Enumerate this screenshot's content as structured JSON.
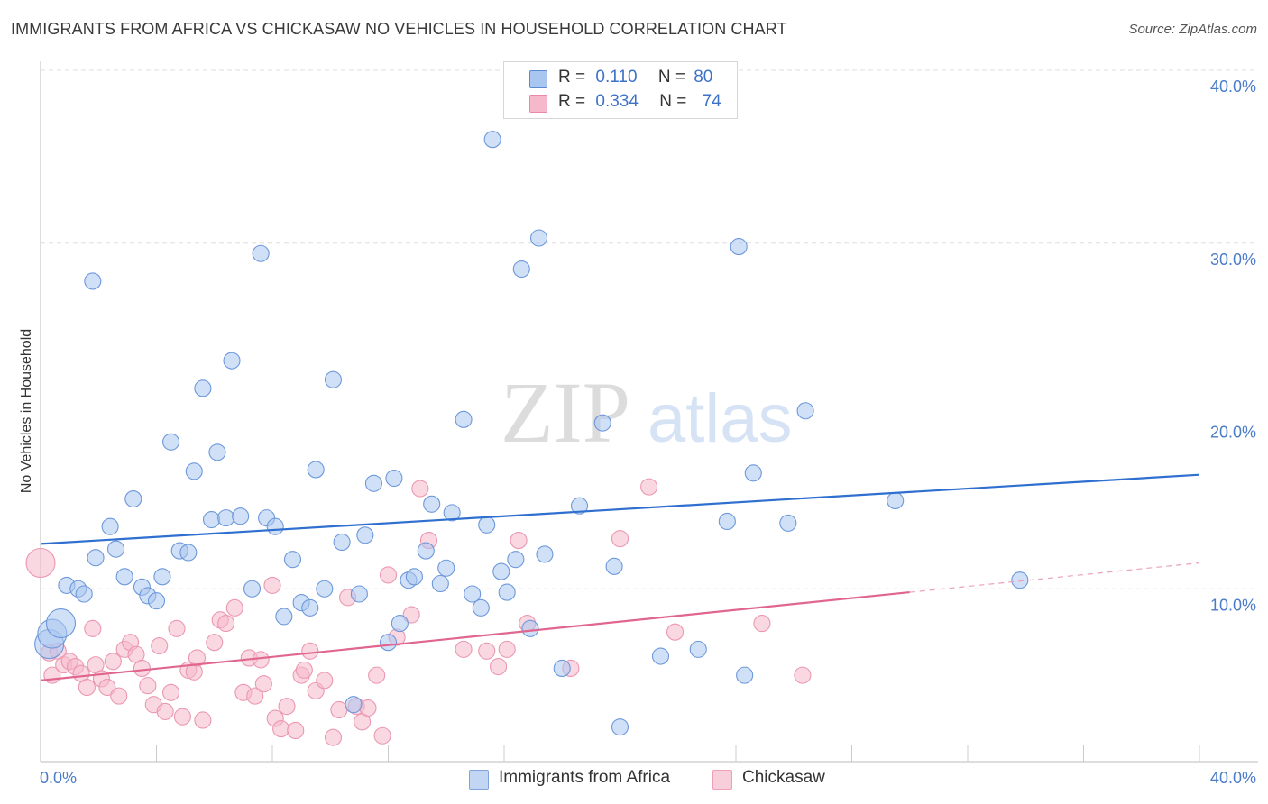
{
  "title": "IMMIGRANTS FROM AFRICA VS CHICKASAW NO VEHICLES IN HOUSEHOLD CORRELATION CHART",
  "source": "Source: ZipAtlas.com",
  "watermark": {
    "zip": "ZIP",
    "atlas": "atlas"
  },
  "legend": {
    "rows": [
      {
        "r_label": "R =",
        "r_value": "0.110",
        "n_label": "N =",
        "n_value": "80",
        "color": "#a9c6f0"
      },
      {
        "r_label": "R =",
        "r_value": "0.334",
        "n_label": "N =",
        "n_value": "74",
        "color": "#f6b8cb"
      }
    ]
  },
  "bottom_legend": [
    {
      "label": "Immigrants from Africa",
      "color": "#a9c6f0"
    },
    {
      "label": "Chickasaw",
      "color": "#f6b8cb"
    }
  ],
  "chart_data": {
    "type": "scatter",
    "title": "IMMIGRANTS FROM AFRICA VS CHICKASAW NO VEHICLES IN HOUSEHOLD CORRELATION CHART",
    "xlabel": "",
    "ylabel": "No Vehicles in Household",
    "xlim": [
      0,
      40
    ],
    "ylim": [
      0,
      40
    ],
    "x_ticks": [
      "0.0%",
      "40.0%"
    ],
    "y_ticks": [
      "10.0%",
      "20.0%",
      "30.0%",
      "40.0%"
    ],
    "y_tick_values": [
      10,
      20,
      30,
      40
    ],
    "grid": true,
    "legend_position": "top-center",
    "series": [
      {
        "name": "Immigrants from Africa",
        "color": "#4a7cc9",
        "fill": "#a9c6f0",
        "r": "0.110",
        "n": "80",
        "trend": {
          "x": [
            0,
            40
          ],
          "y": [
            12.6,
            16.6
          ]
        },
        "points": [
          [
            0.3,
            6.8
          ],
          [
            0.4,
            7.4
          ],
          [
            0.7,
            8.0
          ],
          [
            0.9,
            10.2
          ],
          [
            1.3,
            10.0
          ],
          [
            1.5,
            9.7
          ],
          [
            1.9,
            11.8
          ],
          [
            1.8,
            27.8
          ],
          [
            2.4,
            13.6
          ],
          [
            2.6,
            12.3
          ],
          [
            2.9,
            10.7
          ],
          [
            3.2,
            15.2
          ],
          [
            3.5,
            10.1
          ],
          [
            3.7,
            9.6
          ],
          [
            4.0,
            9.3
          ],
          [
            4.2,
            10.7
          ],
          [
            4.5,
            18.5
          ],
          [
            4.8,
            12.2
          ],
          [
            5.1,
            12.1
          ],
          [
            5.3,
            16.8
          ],
          [
            5.6,
            21.6
          ],
          [
            5.9,
            14.0
          ],
          [
            6.1,
            17.9
          ],
          [
            6.4,
            14.1
          ],
          [
            6.6,
            23.2
          ],
          [
            6.9,
            14.2
          ],
          [
            7.3,
            10.0
          ],
          [
            7.6,
            29.4
          ],
          [
            7.8,
            14.1
          ],
          [
            8.1,
            13.6
          ],
          [
            8.4,
            8.4
          ],
          [
            8.7,
            11.7
          ],
          [
            9.0,
            9.2
          ],
          [
            9.3,
            8.9
          ],
          [
            9.5,
            16.9
          ],
          [
            9.8,
            10.0
          ],
          [
            10.1,
            22.1
          ],
          [
            10.4,
            12.7
          ],
          [
            10.8,
            3.3
          ],
          [
            11.0,
            9.7
          ],
          [
            11.2,
            13.1
          ],
          [
            11.5,
            16.1
          ],
          [
            12.0,
            6.9
          ],
          [
            12.2,
            16.4
          ],
          [
            12.4,
            8.0
          ],
          [
            12.7,
            10.5
          ],
          [
            12.9,
            10.7
          ],
          [
            13.3,
            12.2
          ],
          [
            13.5,
            14.9
          ],
          [
            13.8,
            10.3
          ],
          [
            14.0,
            11.2
          ],
          [
            14.2,
            14.4
          ],
          [
            14.6,
            19.8
          ],
          [
            14.9,
            9.7
          ],
          [
            15.2,
            8.9
          ],
          [
            15.4,
            13.7
          ],
          [
            15.6,
            36.0
          ],
          [
            15.9,
            11.0
          ],
          [
            16.1,
            9.8
          ],
          [
            16.4,
            11.7
          ],
          [
            16.6,
            28.5
          ],
          [
            16.9,
            7.7
          ],
          [
            17.2,
            30.3
          ],
          [
            17.4,
            12.0
          ],
          [
            18.0,
            5.4
          ],
          [
            18.6,
            14.8
          ],
          [
            19.4,
            19.6
          ],
          [
            19.8,
            11.3
          ],
          [
            20.0,
            2.0
          ],
          [
            20.3,
            39.2
          ],
          [
            21.4,
            6.1
          ],
          [
            22.7,
            6.5
          ],
          [
            23.7,
            13.9
          ],
          [
            24.1,
            29.8
          ],
          [
            24.3,
            5.0
          ],
          [
            24.6,
            16.7
          ],
          [
            25.8,
            13.8
          ],
          [
            26.4,
            20.3
          ],
          [
            29.5,
            15.1
          ],
          [
            33.8,
            10.5
          ]
        ],
        "large_points": [
          [
            0.3,
            6.8
          ],
          [
            0.4,
            7.4
          ],
          [
            0.7,
            8.0
          ]
        ]
      },
      {
        "name": "Chickasaw",
        "color": "#e36e96",
        "fill": "#f6b8cb",
        "r": "0.334",
        "n": "74",
        "trend": {
          "x": [
            0,
            30
          ],
          "y": [
            4.7,
            9.8
          ]
        },
        "trend_dashed": {
          "x": [
            30,
            40
          ],
          "y": [
            9.8,
            11.5
          ]
        },
        "points": [
          [
            0.0,
            11.5
          ],
          [
            0.3,
            6.3
          ],
          [
            0.4,
            5.0
          ],
          [
            0.6,
            6.4
          ],
          [
            0.8,
            5.6
          ],
          [
            1.0,
            5.8
          ],
          [
            1.2,
            5.5
          ],
          [
            1.4,
            5.1
          ],
          [
            1.6,
            4.3
          ],
          [
            1.8,
            7.7
          ],
          [
            1.9,
            5.6
          ],
          [
            2.1,
            4.8
          ],
          [
            2.3,
            4.3
          ],
          [
            2.5,
            5.8
          ],
          [
            2.7,
            3.8
          ],
          [
            2.9,
            6.5
          ],
          [
            3.1,
            6.9
          ],
          [
            3.3,
            6.2
          ],
          [
            3.5,
            5.4
          ],
          [
            3.7,
            4.4
          ],
          [
            3.9,
            3.3
          ],
          [
            4.1,
            6.7
          ],
          [
            4.3,
            2.9
          ],
          [
            4.5,
            4.0
          ],
          [
            4.7,
            7.7
          ],
          [
            4.9,
            2.6
          ],
          [
            5.1,
            5.3
          ],
          [
            5.3,
            5.2
          ],
          [
            5.4,
            6.0
          ],
          [
            5.6,
            2.4
          ],
          [
            6.0,
            6.9
          ],
          [
            6.2,
            8.2
          ],
          [
            6.4,
            8.0
          ],
          [
            6.7,
            8.9
          ],
          [
            7.0,
            4.0
          ],
          [
            7.2,
            6.0
          ],
          [
            7.4,
            3.8
          ],
          [
            7.6,
            5.9
          ],
          [
            7.7,
            4.5
          ],
          [
            8.0,
            10.2
          ],
          [
            8.1,
            2.5
          ],
          [
            8.3,
            1.9
          ],
          [
            8.5,
            3.2
          ],
          [
            8.8,
            1.8
          ],
          [
            9.0,
            5.0
          ],
          [
            9.1,
            5.3
          ],
          [
            9.3,
            6.4
          ],
          [
            9.5,
            4.1
          ],
          [
            9.8,
            4.7
          ],
          [
            10.1,
            1.4
          ],
          [
            10.3,
            3.0
          ],
          [
            10.6,
            9.5
          ],
          [
            10.9,
            3.2
          ],
          [
            11.1,
            2.3
          ],
          [
            11.3,
            3.1
          ],
          [
            11.6,
            5.0
          ],
          [
            11.8,
            1.5
          ],
          [
            12.0,
            10.8
          ],
          [
            12.3,
            7.2
          ],
          [
            12.8,
            8.5
          ],
          [
            13.4,
            12.8
          ],
          [
            13.1,
            15.8
          ],
          [
            14.6,
            6.5
          ],
          [
            15.4,
            6.4
          ],
          [
            15.8,
            5.5
          ],
          [
            16.1,
            6.5
          ],
          [
            16.5,
            12.8
          ],
          [
            16.8,
            8.0
          ],
          [
            18.3,
            5.4
          ],
          [
            20.0,
            12.9
          ],
          [
            21.0,
            15.9
          ],
          [
            21.9,
            7.5
          ],
          [
            24.9,
            8.0
          ],
          [
            26.3,
            5.0
          ]
        ],
        "large_points": [
          [
            0.0,
            11.5
          ]
        ]
      }
    ]
  }
}
